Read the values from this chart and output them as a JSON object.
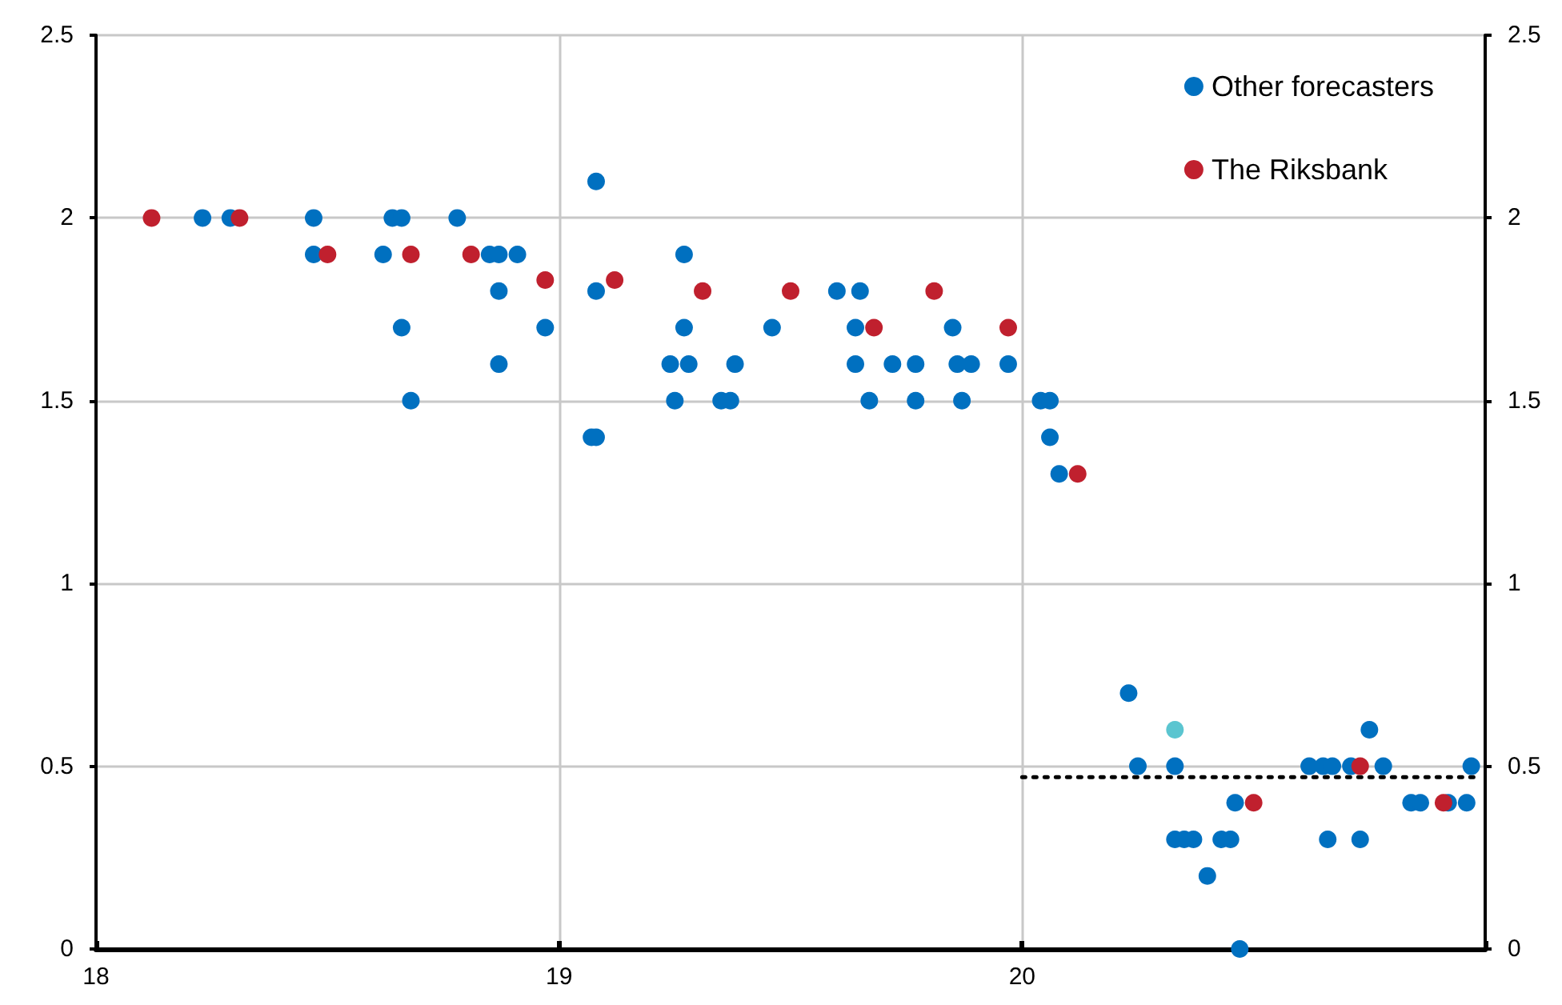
{
  "chart_data": {
    "type": "scatter",
    "xlim": [
      18,
      21
    ],
    "xticks": [
      18,
      19,
      20
    ],
    "ylim": [
      0,
      2.5
    ],
    "yticks": [
      0,
      0.5,
      1,
      1.5,
      2,
      2.5
    ],
    "y2lim": [
      0,
      2.5
    ],
    "y2ticks": [
      0,
      0.5,
      1,
      1.5,
      2,
      2.5
    ],
    "grid": true,
    "legend": "top right",
    "marker": "circle",
    "series": [
      {
        "name": "Other forecasters",
        "color": "#0070c0",
        "x": [
          18.23,
          18.29,
          18.47,
          18.47,
          18.62,
          18.64,
          18.66,
          18.66,
          18.68,
          18.78,
          18.85,
          18.87,
          18.91,
          18.87,
          18.87,
          18.97,
          19.07,
          19.08,
          19.08,
          19.08,
          19.24,
          19.25,
          19.27,
          19.27,
          19.28,
          19.35,
          19.37,
          19.38,
          19.46,
          19.6,
          19.64,
          19.64,
          19.65,
          19.67,
          19.72,
          19.77,
          19.77,
          19.85,
          19.86,
          19.87,
          19.89,
          19.97,
          20.04,
          20.06,
          20.06,
          20.08,
          20.23,
          20.25,
          20.33,
          20.33,
          20.35,
          20.37,
          20.4,
          20.43,
          20.45,
          20.46,
          20.47,
          20.62,
          20.65,
          20.67,
          20.66,
          20.71,
          20.73,
          20.75,
          20.78,
          20.84,
          20.86,
          20.92,
          20.97,
          20.96
        ],
        "values": [
          2.0,
          2.0,
          2.0,
          1.9,
          1.9,
          2.0,
          2.0,
          1.7,
          1.5,
          2.0,
          1.9,
          1.9,
          1.9,
          1.8,
          1.6,
          1.7,
          1.4,
          1.4,
          2.1,
          1.8,
          1.6,
          1.5,
          1.7,
          1.9,
          1.6,
          1.5,
          1.5,
          1.6,
          1.7,
          1.8,
          1.7,
          1.6,
          1.8,
          1.5,
          1.6,
          1.5,
          1.6,
          1.7,
          1.6,
          1.5,
          1.6,
          1.6,
          1.5,
          1.5,
          1.4,
          1.3,
          0.7,
          0.5,
          0.5,
          0.3,
          0.3,
          0.3,
          0.2,
          0.3,
          0.3,
          0.4,
          0.0,
          0.5,
          0.5,
          0.5,
          0.3,
          0.5,
          0.3,
          0.6,
          0.5,
          0.4,
          0.4,
          0.4,
          0.5,
          0.4
        ]
      },
      {
        "name": "The Riksbank",
        "color": "#c0202e",
        "x": [
          18.12,
          18.31,
          18.5,
          18.68,
          18.81,
          18.97,
          19.12,
          19.31,
          19.5,
          19.68,
          19.81,
          19.97,
          20.12,
          20.5,
          20.73,
          20.91
        ],
        "values": [
          2.0,
          2.0,
          1.9,
          1.9,
          1.9,
          1.83,
          1.83,
          1.8,
          1.8,
          1.7,
          1.8,
          1.7,
          1.3,
          0.4,
          0.5,
          0.4
        ]
      },
      {
        "color": "#5bc5d0",
        "x": [
          20.33
        ],
        "values": [
          0.6
        ]
      },
      {
        "type": "line",
        "color": "#000000",
        "line_style": "dotted",
        "marker": "none",
        "x": [
          20.0,
          20.98
        ],
        "values": [
          0.47,
          0.47
        ]
      }
    ]
  }
}
